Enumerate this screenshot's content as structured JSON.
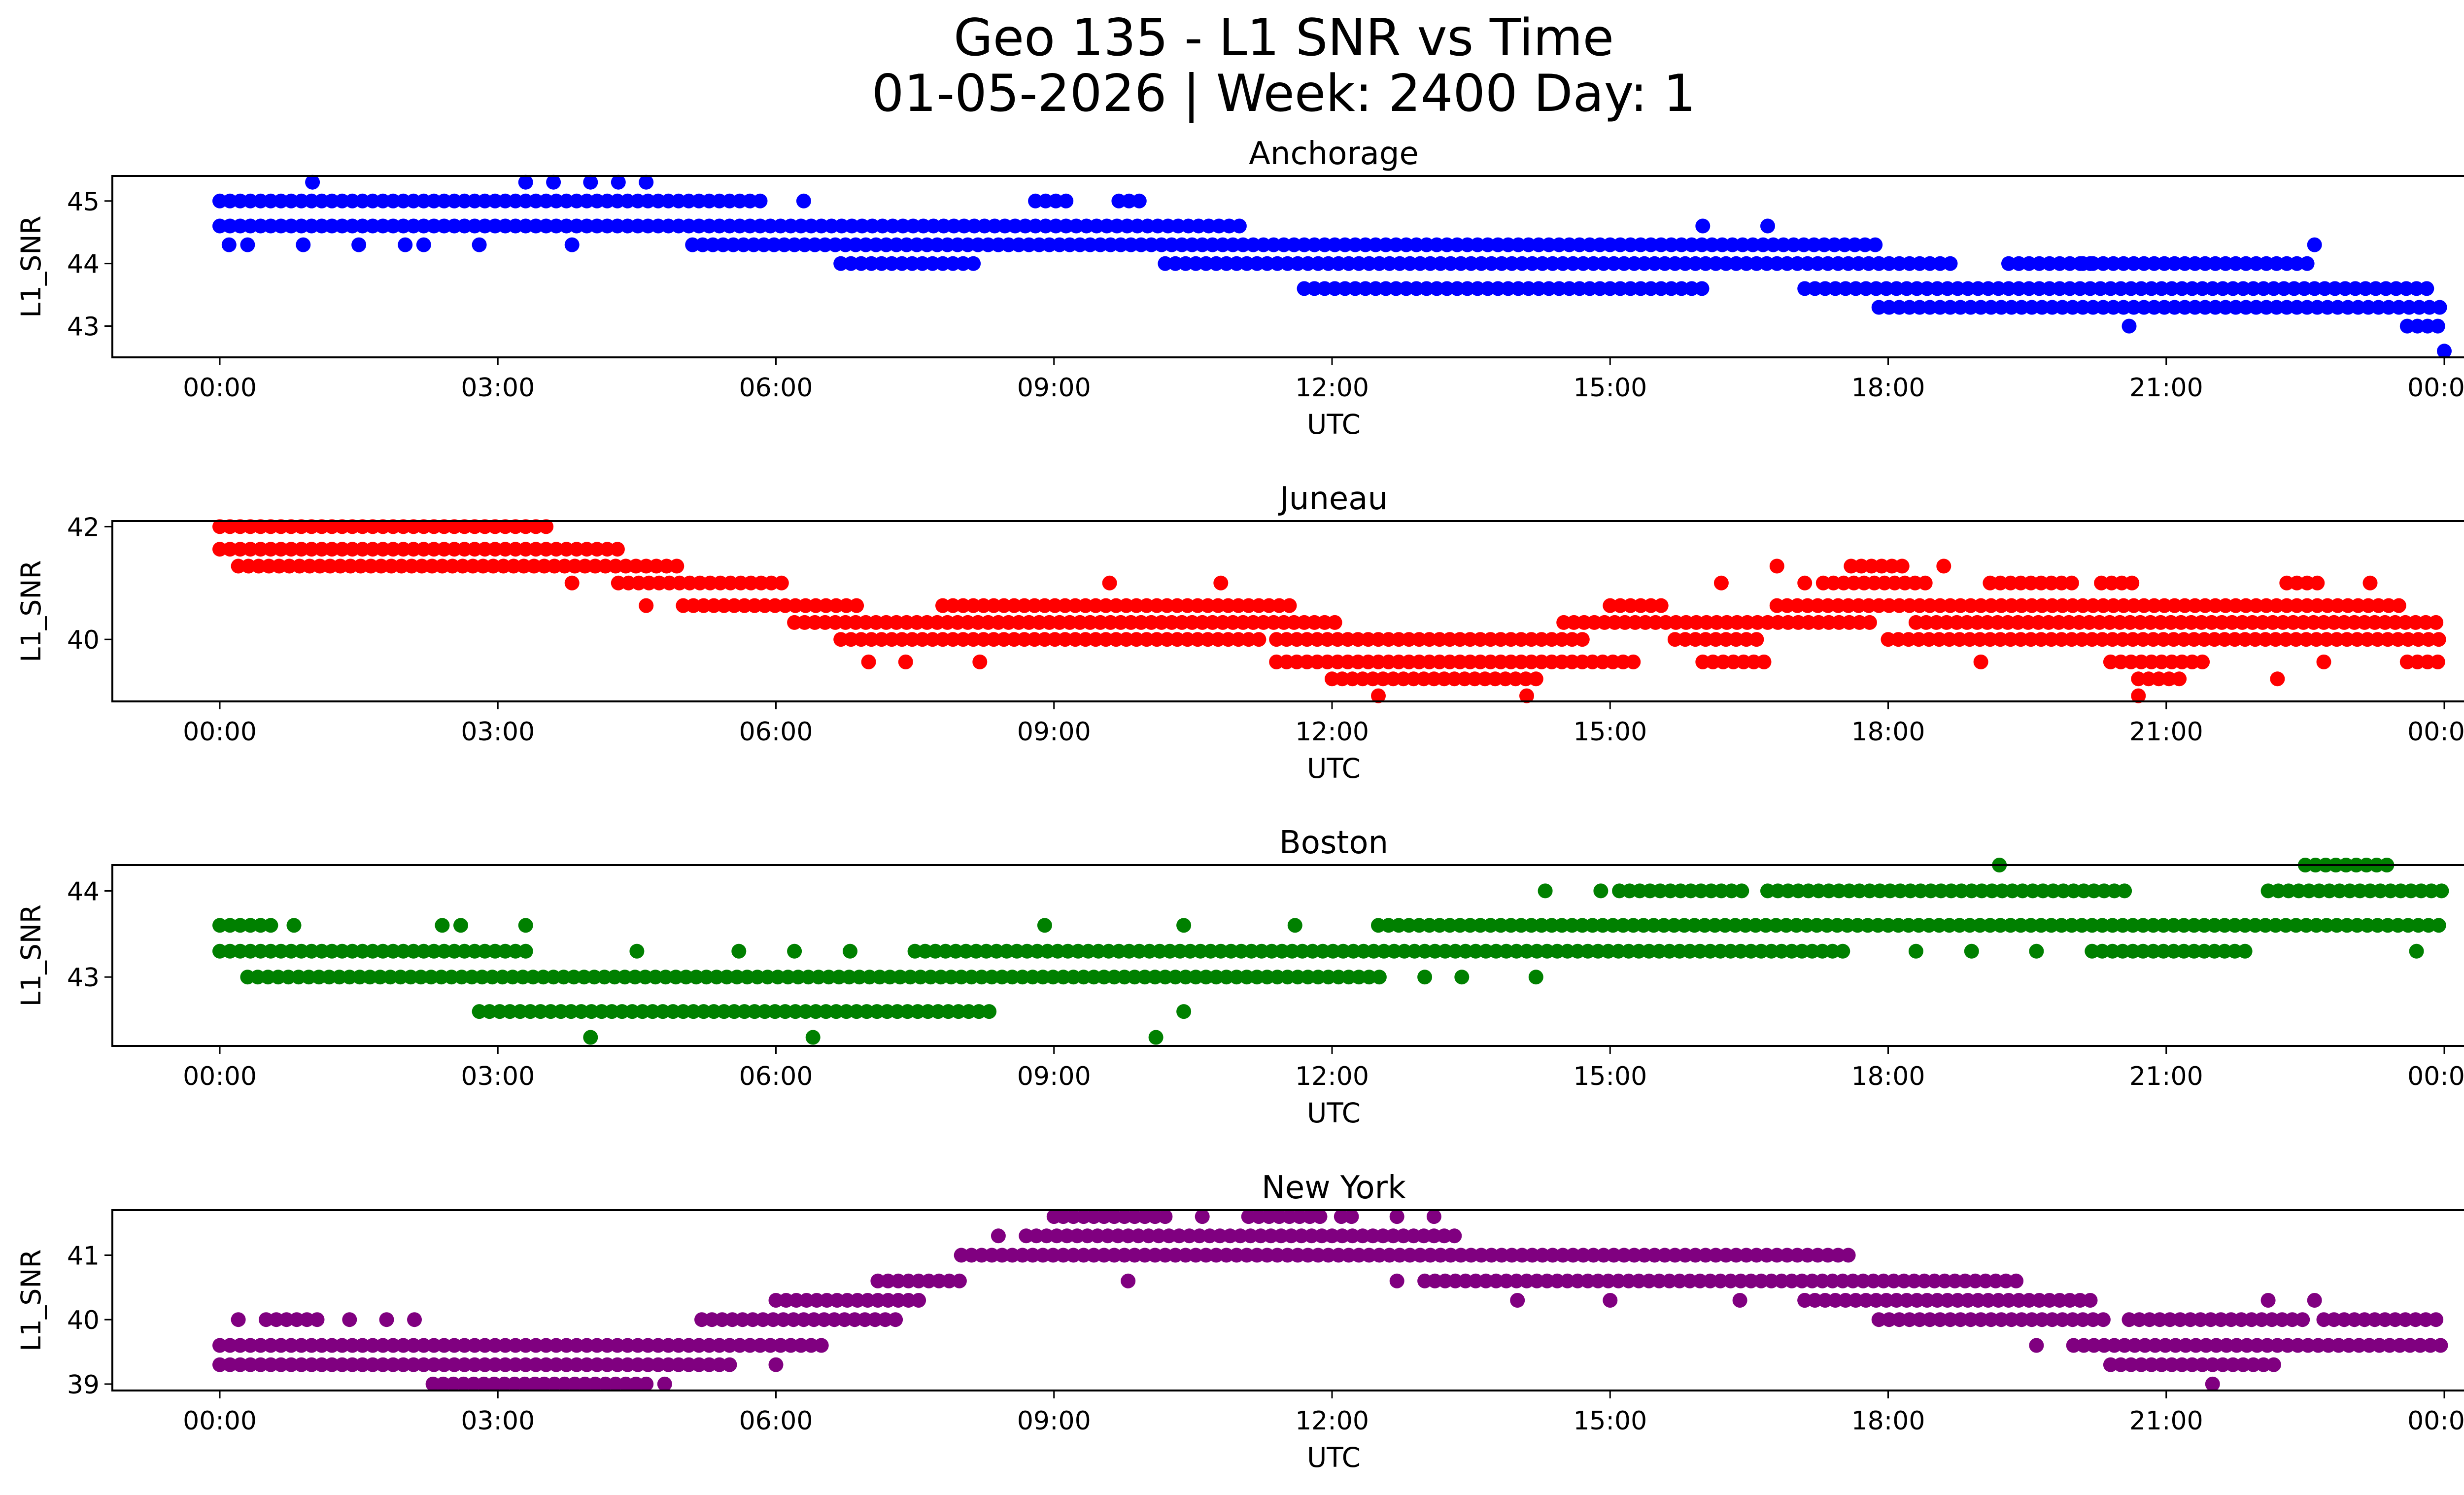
{
  "figure": {
    "title_line1": "Geo 135 - L1 SNR vs Time",
    "title_line2": "01-05-2026 | Week: 2400 Day: 1"
  },
  "chart_data": [
    {
      "type": "scatter",
      "title": "Anchorage",
      "xlabel": "UTC",
      "ylabel": "L1_SNR",
      "color": "#0000ff",
      "xlim": [
        "00:00",
        "24:00"
      ],
      "ylim": [
        42.5,
        45.4
      ],
      "yticks": [
        43,
        44,
        45
      ],
      "xticks": [
        "00:00",
        "03:00",
        "06:00",
        "09:00",
        "12:00",
        "15:00",
        "18:00",
        "21:00",
        "00:00"
      ],
      "levels": [
        {
          "y": 45.0,
          "segments": [
            [
              0.0,
              5.9
            ],
            [
              8.8,
              9.2
            ],
            [
              9.7,
              10.0
            ]
          ]
        },
        {
          "y": 44.6,
          "segments": [
            [
              0.0,
              11.0
            ]
          ]
        },
        {
          "y": 44.3,
          "segments": [
            [
              5.1,
              17.9
            ]
          ]
        },
        {
          "y": 44.0,
          "segments": [
            [
              6.7,
              8.2
            ],
            [
              10.2,
              18.7
            ],
            [
              19.3,
              20.2
            ],
            [
              20.1,
              22.6
            ]
          ]
        },
        {
          "y": 43.6,
          "segments": [
            [
              11.7,
              16.0
            ],
            [
              17.1,
              23.9
            ]
          ]
        },
        {
          "y": 43.3,
          "segments": [
            [
              17.9,
              24.0
            ]
          ]
        },
        {
          "y": 43.0,
          "segments": [
            [
              23.6,
              24.0
            ]
          ]
        }
      ],
      "points": [
        {
          "x": 0.1,
          "y": 44.3
        },
        {
          "x": 0.3,
          "y": 44.3
        },
        {
          "x": 0.9,
          "y": 44.3
        },
        {
          "x": 1.5,
          "y": 44.3
        },
        {
          "x": 2.0,
          "y": 44.3
        },
        {
          "x": 2.2,
          "y": 44.3
        },
        {
          "x": 2.8,
          "y": 44.3
        },
        {
          "x": 3.8,
          "y": 44.3
        },
        {
          "x": 1.0,
          "y": 45.3
        },
        {
          "x": 3.3,
          "y": 45.3
        },
        {
          "x": 3.6,
          "y": 45.3
        },
        {
          "x": 4.0,
          "y": 45.3
        },
        {
          "x": 4.3,
          "y": 45.3
        },
        {
          "x": 4.6,
          "y": 45.3
        },
        {
          "x": 6.3,
          "y": 45.0
        },
        {
          "x": 16.0,
          "y": 44.6
        },
        {
          "x": 16.7,
          "y": 44.6
        },
        {
          "x": 22.6,
          "y": 44.3
        },
        {
          "x": 20.6,
          "y": 43.0
        },
        {
          "x": 24.0,
          "y": 42.6
        }
      ]
    },
    {
      "type": "scatter",
      "title": "Juneau",
      "xlabel": "UTC",
      "ylabel": "L1_SNR",
      "color": "#ff0000",
      "xlim": [
        "00:00",
        "24:00"
      ],
      "ylim": [
        38.9,
        42.1
      ],
      "yticks": [
        40,
        42
      ],
      "xticks": [
        "00:00",
        "03:00",
        "06:00",
        "09:00",
        "12:00",
        "15:00",
        "18:00",
        "21:00",
        "00:00"
      ],
      "levels": [
        {
          "y": 42.0,
          "segments": [
            [
              0.0,
              3.6
            ]
          ]
        },
        {
          "y": 41.6,
          "segments": [
            [
              0.0,
              4.3
            ]
          ]
        },
        {
          "y": 41.3,
          "segments": [
            [
              0.2,
              5.0
            ]
          ]
        },
        {
          "y": 41.0,
          "segments": [
            [
              4.3,
              6.1
            ]
          ]
        },
        {
          "y": 40.6,
          "segments": [
            [
              5.0,
              6.9
            ],
            [
              7.8,
              11.6
            ],
            [
              15.0,
              15.6
            ],
            [
              16.8,
              23.6
            ]
          ]
        },
        {
          "y": 40.3,
          "segments": [
            [
              6.2,
              12.1
            ],
            [
              14.5,
              17.8
            ],
            [
              18.3,
              24.0
            ]
          ]
        },
        {
          "y": 40.0,
          "segments": [
            [
              6.7,
              11.3
            ],
            [
              11.4,
              14.8
            ],
            [
              15.7,
              16.6
            ],
            [
              18.0,
              24.0
            ]
          ]
        },
        {
          "y": 39.6,
          "segments": [
            [
              11.4,
              15.3
            ],
            [
              16.0,
              16.7
            ],
            [
              20.4,
              21.4
            ],
            [
              23.6,
              24.0
            ]
          ]
        },
        {
          "y": 39.3,
          "segments": [
            [
              12.0,
              14.2
            ],
            [
              20.7,
              21.2
            ]
          ]
        },
        {
          "y": 41.3,
          "segments": [
            [
              17.6,
              18.2
            ]
          ]
        },
        {
          "y": 41.0,
          "segments": [
            [
              17.3,
              18.4
            ],
            [
              19.1,
              20.0
            ],
            [
              20.3,
              20.7
            ],
            [
              22.3,
              22.7
            ]
          ]
        }
      ],
      "points": [
        {
          "x": 3.8,
          "y": 41.0
        },
        {
          "x": 4.6,
          "y": 40.6
        },
        {
          "x": 7.0,
          "y": 39.6
        },
        {
          "x": 7.4,
          "y": 39.6
        },
        {
          "x": 8.2,
          "y": 39.6
        },
        {
          "x": 9.6,
          "y": 41.0
        },
        {
          "x": 10.8,
          "y": 41.0
        },
        {
          "x": 12.5,
          "y": 39.0
        },
        {
          "x": 14.1,
          "y": 39.0
        },
        {
          "x": 16.2,
          "y": 41.0
        },
        {
          "x": 16.8,
          "y": 41.3
        },
        {
          "x": 17.1,
          "y": 41.0
        },
        {
          "x": 18.6,
          "y": 41.3
        },
        {
          "x": 19.0,
          "y": 39.6
        },
        {
          "x": 20.7,
          "y": 39.0
        },
        {
          "x": 22.2,
          "y": 39.3
        },
        {
          "x": 22.7,
          "y": 39.6
        },
        {
          "x": 23.2,
          "y": 41.0
        }
      ]
    },
    {
      "type": "scatter",
      "title": "Boston",
      "xlabel": "UTC",
      "ylabel": "L1_SNR",
      "color": "#008000",
      "xlim": [
        "00:00",
        "24:00"
      ],
      "ylim": [
        42.2,
        44.3
      ],
      "yticks": [
        43,
        44
      ],
      "xticks": [
        "00:00",
        "03:00",
        "06:00",
        "09:00",
        "12:00",
        "15:00",
        "18:00",
        "21:00",
        "00:00"
      ],
      "levels": [
        {
          "y": 43.6,
          "segments": [
            [
              0.0,
              0.6
            ],
            [
              12.5,
              24.0
            ]
          ]
        },
        {
          "y": 43.3,
          "segments": [
            [
              0.0,
              3.3
            ],
            [
              7.5,
              17.6
            ],
            [
              20.2,
              21.9
            ]
          ]
        },
        {
          "y": 43.0,
          "segments": [
            [
              0.3,
              12.6
            ]
          ]
        },
        {
          "y": 42.6,
          "segments": [
            [
              2.8,
              8.3
            ]
          ]
        },
        {
          "y": 44.0,
          "segments": [
            [
              15.1,
              16.5
            ],
            [
              16.7,
              20.6
            ],
            [
              22.1,
              24.0
            ]
          ]
        },
        {
          "y": 44.3,
          "segments": [
            [
              22.5,
              23.4
            ]
          ]
        }
      ],
      "points": [
        {
          "x": 0.8,
          "y": 43.6
        },
        {
          "x": 2.4,
          "y": 43.6
        },
        {
          "x": 2.6,
          "y": 43.6
        },
        {
          "x": 3.3,
          "y": 43.6
        },
        {
          "x": 4.5,
          "y": 43.3
        },
        {
          "x": 5.6,
          "y": 43.3
        },
        {
          "x": 6.2,
          "y": 43.3
        },
        {
          "x": 6.8,
          "y": 43.3
        },
        {
          "x": 4.0,
          "y": 42.3
        },
        {
          "x": 6.4,
          "y": 42.3
        },
        {
          "x": 10.1,
          "y": 42.3
        },
        {
          "x": 10.4,
          "y": 42.6
        },
        {
          "x": 8.9,
          "y": 43.6
        },
        {
          "x": 10.4,
          "y": 43.6
        },
        {
          "x": 11.6,
          "y": 43.6
        },
        {
          "x": 13.0,
          "y": 43.0
        },
        {
          "x": 13.4,
          "y": 43.0
        },
        {
          "x": 14.2,
          "y": 43.0
        },
        {
          "x": 14.3,
          "y": 44.0
        },
        {
          "x": 14.9,
          "y": 44.0
        },
        {
          "x": 19.2,
          "y": 44.3
        },
        {
          "x": 18.3,
          "y": 43.3
        },
        {
          "x": 18.9,
          "y": 43.3
        },
        {
          "x": 19.6,
          "y": 43.3
        },
        {
          "x": 23.7,
          "y": 43.3
        }
      ]
    },
    {
      "type": "scatter",
      "title": "New York",
      "xlabel": "UTC",
      "ylabel": "L1_SNR",
      "color": "#800080",
      "xlim": [
        "00:00",
        "24:00"
      ],
      "ylim": [
        38.9,
        41.7
      ],
      "yticks": [
        39,
        40,
        41
      ],
      "xticks": [
        "00:00",
        "03:00",
        "06:00",
        "09:00",
        "12:00",
        "15:00",
        "18:00",
        "21:00",
        "00:00"
      ],
      "levels": [
        {
          "y": 39.6,
          "segments": [
            [
              0.0,
              6.5
            ],
            [
              20.0,
              24.0
            ]
          ]
        },
        {
          "y": 39.3,
          "segments": [
            [
              0.0,
              5.6
            ],
            [
              20.4,
              22.2
            ]
          ]
        },
        {
          "y": 39.0,
          "segments": [
            [
              2.3,
              3.4
            ],
            [
              3.5,
              4.6
            ]
          ]
        },
        {
          "y": 40.0,
          "segments": [
            [
              0.5,
              1.1
            ],
            [
              5.2,
              7.3
            ],
            [
              17.9,
              20.4
            ],
            [
              20.6,
              22.5
            ],
            [
              22.7,
              24.0
            ]
          ]
        },
        {
          "y": 40.3,
          "segments": [
            [
              6.0,
              7.6
            ],
            [
              17.1,
              20.2
            ]
          ]
        },
        {
          "y": 40.6,
          "segments": [
            [
              7.1,
              8.0
            ],
            [
              13.0,
              19.4
            ]
          ]
        },
        {
          "y": 41.0,
          "segments": [
            [
              8.0,
              17.6
            ]
          ]
        },
        {
          "y": 41.3,
          "segments": [
            [
              8.7,
              13.4
            ]
          ]
        },
        {
          "y": 41.6,
          "segments": [
            [
              9.1,
              10.3
            ],
            [
              11.1,
              11.9
            ],
            [
              12.1,
              12.3
            ]
          ]
        }
      ],
      "points": [
        {
          "x": 0.2,
          "y": 40.0
        },
        {
          "x": 1.4,
          "y": 40.0
        },
        {
          "x": 1.8,
          "y": 40.0
        },
        {
          "x": 2.1,
          "y": 40.0
        },
        {
          "x": 4.8,
          "y": 39.0
        },
        {
          "x": 6.0,
          "y": 39.3
        },
        {
          "x": 8.4,
          "y": 41.3
        },
        {
          "x": 9.0,
          "y": 41.6
        },
        {
          "x": 9.8,
          "y": 40.6
        },
        {
          "x": 10.6,
          "y": 41.6
        },
        {
          "x": 12.7,
          "y": 41.6
        },
        {
          "x": 13.1,
          "y": 41.6
        },
        {
          "x": 12.7,
          "y": 40.6
        },
        {
          "x": 14.0,
          "y": 40.3
        },
        {
          "x": 15.0,
          "y": 40.3
        },
        {
          "x": 16.4,
          "y": 40.3
        },
        {
          "x": 17.1,
          "y": 40.3
        },
        {
          "x": 19.6,
          "y": 39.6
        },
        {
          "x": 21.5,
          "y": 39.0
        },
        {
          "x": 22.1,
          "y": 40.3
        },
        {
          "x": 22.6,
          "y": 40.3
        }
      ]
    }
  ]
}
